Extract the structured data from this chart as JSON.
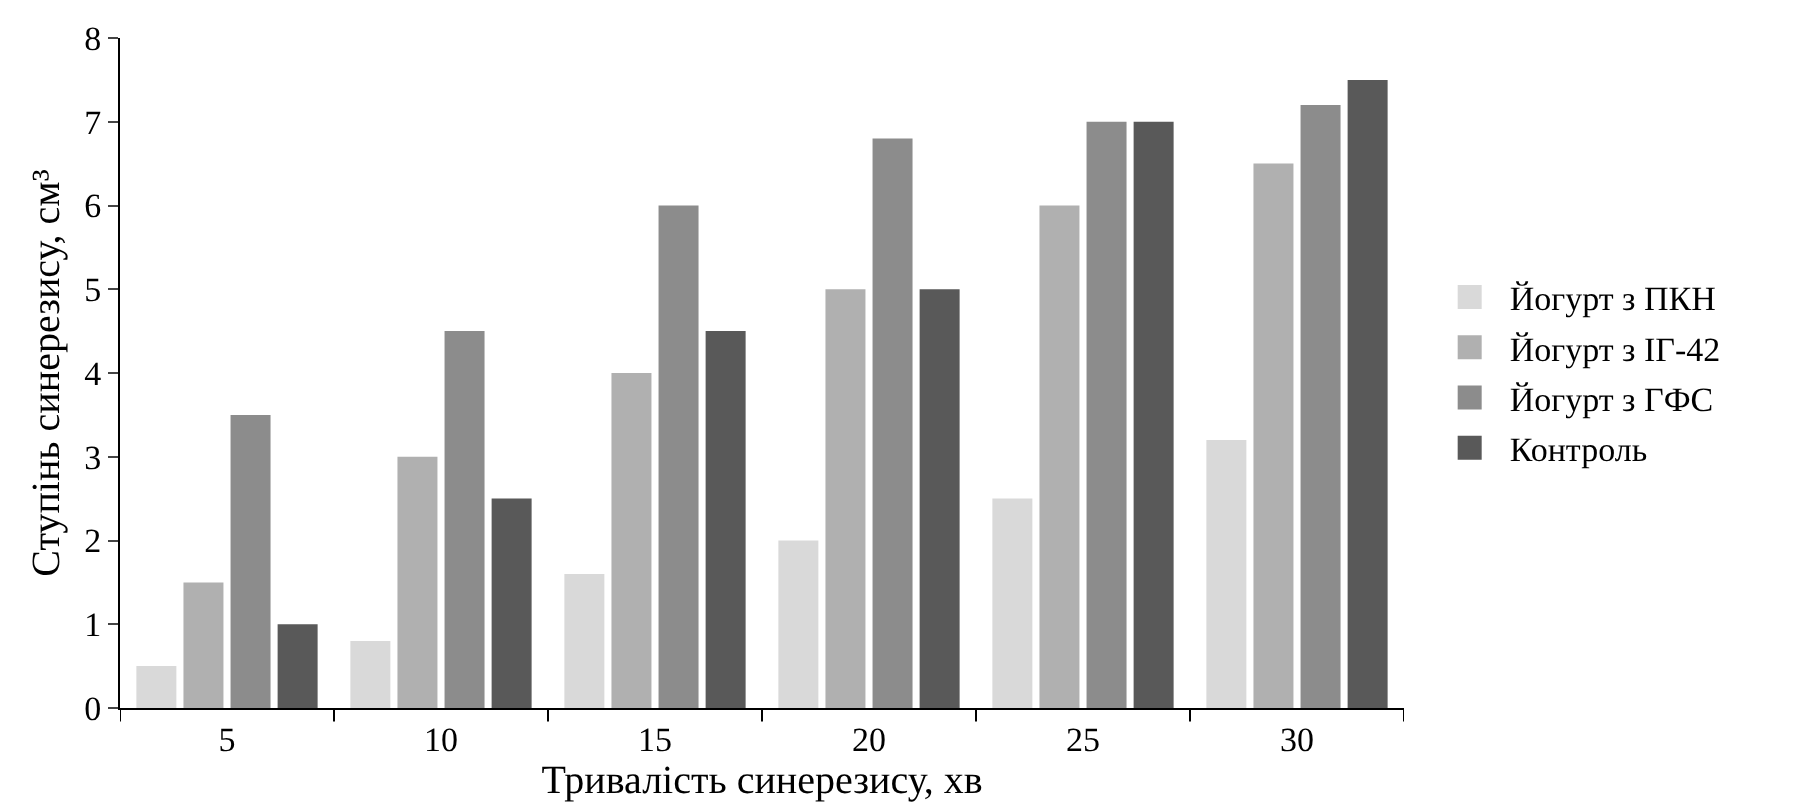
{
  "chart_data": {
    "type": "bar",
    "xlabel": "Тривалість синерезису, хв",
    "ylabel": "Ступінь синерезису, см³",
    "categories": [
      "5",
      "10",
      "15",
      "20",
      "25",
      "30"
    ],
    "series": [
      {
        "name": "Йогурт з ПКН",
        "color": "#d9d9d9",
        "values": [
          0.5,
          0.8,
          1.6,
          2.0,
          2.5,
          3.2
        ]
      },
      {
        "name": "Йогурт з IГ-42",
        "color": "#b0b0b0",
        "values": [
          1.5,
          3.0,
          4.0,
          5.0,
          6.0,
          6.5
        ]
      },
      {
        "name": "Йогурт з ГФС",
        "color": "#8c8c8c",
        "values": [
          3.5,
          4.5,
          6.0,
          6.8,
          7.0,
          7.2
        ]
      },
      {
        "name": "Контроль",
        "color": "#595959",
        "values": [
          1.0,
          2.5,
          4.5,
          5.0,
          7.0,
          7.5
        ]
      }
    ],
    "ylim": [
      0,
      8
    ],
    "yticks": [
      0,
      1,
      2,
      3,
      4,
      5,
      6,
      7,
      8
    ],
    "legend": "right"
  }
}
